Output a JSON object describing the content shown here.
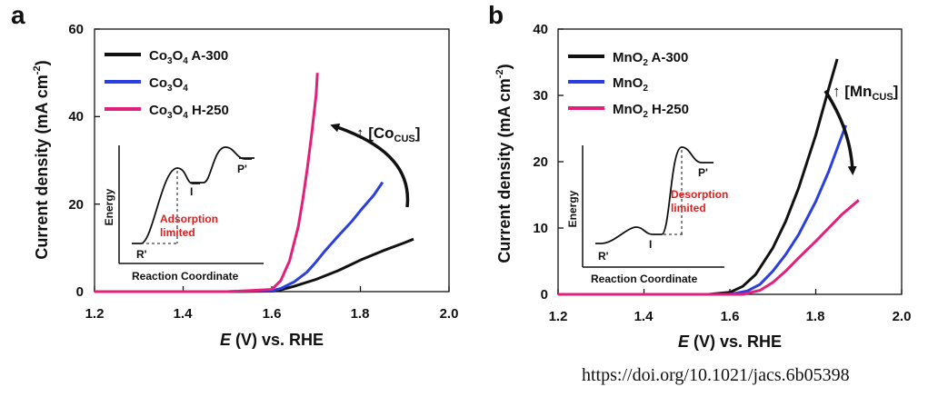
{
  "doi": "https://doi.org/10.1021/jacs.6b05398",
  "colors": {
    "black": "#111111",
    "blue": "#2b3fe0",
    "pink": "#e2207a",
    "red": "#e02020"
  },
  "inset_common": {
    "ylabel": "Energy",
    "xlabel": "Reaction Coordinate"
  },
  "chart_data": [
    {
      "panel": "a",
      "type": "line",
      "title": "",
      "xlabel": {
        "italic": "E",
        "rest": " (V) vs. RHE"
      },
      "ylabel": "Current density (mA cm",
      "ylabel_sup": "-2",
      "ylabel_end": ")",
      "xlim": [
        1.2,
        2.0
      ],
      "ylim": [
        0,
        60
      ],
      "xticks": [
        1.2,
        1.4,
        1.6,
        1.8,
        2.0
      ],
      "xtick_labels": [
        "1.2",
        "1.4",
        "1.6",
        "1.8",
        "2.0"
      ],
      "yticks": [
        0,
        20,
        40,
        60
      ],
      "ytick_labels": [
        "0",
        "20",
        "40",
        "60"
      ],
      "series": [
        {
          "name": "Co3O4 A-300",
          "label_parts": [
            "Co",
            "3",
            "O",
            "4",
            " A-300"
          ],
          "color": "#111111",
          "x": [
            1.2,
            1.5,
            1.6,
            1.62,
            1.65,
            1.7,
            1.75,
            1.8,
            1.85,
            1.9,
            1.92
          ],
          "y": [
            0,
            0,
            0.1,
            0.4,
            1.2,
            2.8,
            4.8,
            7.2,
            9.3,
            11.2,
            12
          ]
        },
        {
          "name": "Co3O4",
          "label_parts": [
            "Co",
            "3",
            "O",
            "4",
            ""
          ],
          "color": "#2b3fe0",
          "x": [
            1.2,
            1.5,
            1.6,
            1.62,
            1.65,
            1.68,
            1.7,
            1.72,
            1.75,
            1.78,
            1.8,
            1.83,
            1.85
          ],
          "y": [
            0,
            0,
            0.2,
            0.7,
            2.2,
            4.5,
            6.8,
            9.3,
            12.7,
            16,
            18.5,
            22,
            25
          ]
        },
        {
          "name": "Co3O4 H-250",
          "label_parts": [
            "Co",
            "3",
            "O",
            "4",
            " H-250"
          ],
          "color": "#e2207a",
          "x": [
            1.2,
            1.5,
            1.6,
            1.62,
            1.64,
            1.66,
            1.67,
            1.68,
            1.69,
            1.7,
            1.703
          ],
          "y": [
            0,
            0,
            0.5,
            2.5,
            7,
            15,
            21,
            28,
            36,
            45,
            50
          ]
        }
      ],
      "annotation": {
        "prefix": "↑ [Co",
        "sub": "CUS",
        "suffix": "]"
      },
      "inset": {
        "states": [
          "R'",
          "I",
          "P'"
        ],
        "note_line1": "Adsorption",
        "note_line2": "limited"
      }
    },
    {
      "panel": "b",
      "type": "line",
      "title": "",
      "xlabel": {
        "italic": "E",
        "rest": " (V) vs. RHE"
      },
      "ylabel": "Current density (mA cm",
      "ylabel_sup": "-2",
      "ylabel_end": ")",
      "xlim": [
        1.2,
        2.0
      ],
      "ylim": [
        0,
        40
      ],
      "xticks": [
        1.2,
        1.4,
        1.6,
        1.8,
        2.0
      ],
      "xtick_labels": [
        "1.2",
        "1.4",
        "1.6",
        "1.8",
        "2.0"
      ],
      "yticks": [
        0,
        10,
        20,
        30,
        40
      ],
      "ytick_labels": [
        "0",
        "10",
        "20",
        "30",
        "40"
      ],
      "series": [
        {
          "name": "MnO2 A-300",
          "label_parts": [
            "MnO",
            "2",
            " A-300"
          ],
          "color": "#111111",
          "x": [
            1.2,
            1.55,
            1.6,
            1.63,
            1.66,
            1.7,
            1.73,
            1.76,
            1.8,
            1.83,
            1.85
          ],
          "y": [
            0,
            0,
            0.3,
            1.2,
            3,
            7,
            11,
            16,
            24,
            31,
            35.5
          ]
        },
        {
          "name": "MnO2",
          "label_parts": [
            "MnO",
            "2",
            ""
          ],
          "color": "#2b3fe0",
          "x": [
            1.2,
            1.6,
            1.64,
            1.67,
            1.7,
            1.73,
            1.76,
            1.8,
            1.83,
            1.85,
            1.87
          ],
          "y": [
            0,
            0,
            0.5,
            1.5,
            3.5,
            6,
            9,
            14,
            18.5,
            22,
            25.5
          ]
        },
        {
          "name": "MnO2 H-250",
          "label_parts": [
            "MnO",
            "2",
            " H-250"
          ],
          "color": "#e2207a",
          "x": [
            1.2,
            1.63,
            1.67,
            1.7,
            1.73,
            1.76,
            1.8,
            1.83,
            1.86,
            1.9
          ],
          "y": [
            0,
            0,
            0.6,
            1.8,
            3.5,
            5.5,
            8,
            10,
            12,
            14.2
          ]
        }
      ],
      "annotation": {
        "prefix": "↑ [Mn",
        "sub": "CUS",
        "suffix": "]"
      },
      "inset": {
        "states": [
          "R'",
          "I",
          "P'"
        ],
        "note_line1": "Desorption",
        "note_line2": "limited"
      }
    }
  ]
}
